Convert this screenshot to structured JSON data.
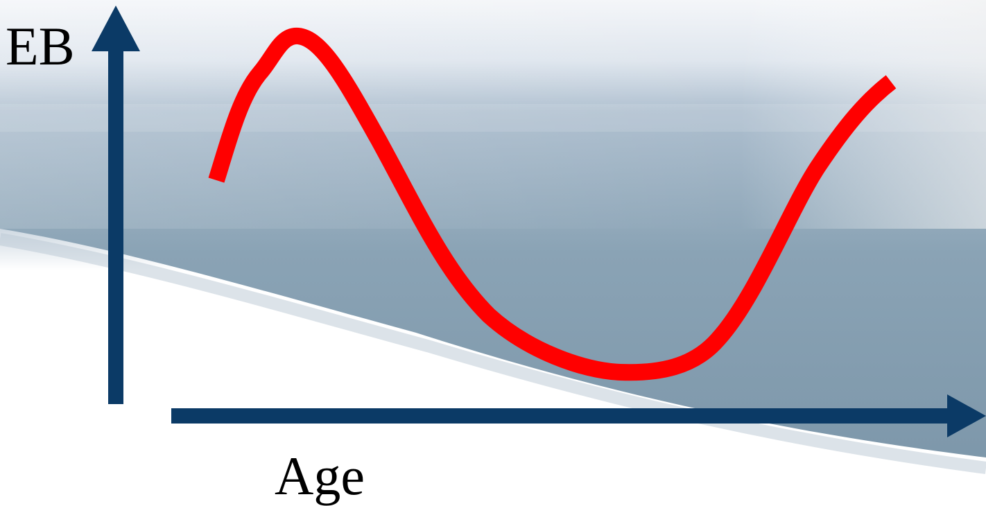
{
  "diagram": {
    "y_axis_label": "EB",
    "x_axis_label": "Age"
  },
  "colors": {
    "axis": "#0b3a66",
    "curve": "#ff0000",
    "background_sky": "#dfe6ee",
    "background_water": "#7f98aa",
    "background_snow": "#ffffff"
  }
}
